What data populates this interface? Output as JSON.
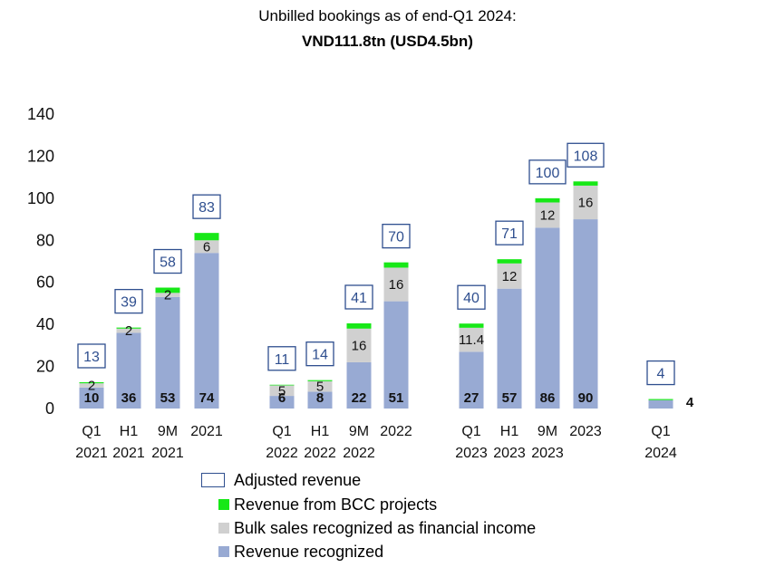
{
  "chart_data": {
    "type": "bar",
    "stacked": true,
    "title": "Unbilled bookings as of end-Q1 2024:",
    "subtitle": "VND111.8tn (USD4.5bn)",
    "ylim": [
      0,
      140
    ],
    "yticks": [
      "0",
      "20",
      "40",
      "60",
      "80",
      "100",
      "120",
      "140"
    ],
    "grid": false,
    "legend_position": "bottom",
    "categories": [
      {
        "line1": "Q1",
        "line2": "2021"
      },
      {
        "line1": "H1",
        "line2": "2021"
      },
      {
        "line1": "9M",
        "line2": "2021"
      },
      {
        "line1": "2021",
        "line2": ""
      },
      {
        "line1": "Q1",
        "line2": "2022"
      },
      {
        "line1": "H1",
        "line2": "2022"
      },
      {
        "line1": "9M",
        "line2": "2022"
      },
      {
        "line1": "2022",
        "line2": ""
      },
      {
        "line1": "Q1",
        "line2": "2023"
      },
      {
        "line1": "H1",
        "line2": "2023"
      },
      {
        "line1": "9M",
        "line2": "2023"
      },
      {
        "line1": "2023",
        "line2": ""
      },
      {
        "line1": "Q1",
        "line2": "2024"
      }
    ],
    "series": [
      {
        "name": "Revenue recognized",
        "color": "#98aad3",
        "values": [
          10,
          36,
          53,
          74,
          6,
          8,
          22,
          51,
          27,
          57,
          86,
          90,
          4
        ],
        "labels": [
          "10",
          "36",
          "53",
          "74",
          "6",
          "8",
          "22",
          "51",
          "27",
          "57",
          "86",
          "90",
          "4"
        ]
      },
      {
        "name": "Bulk sales recognized as financial income",
        "color": "#d0d0d0",
        "values": [
          2,
          2,
          2,
          6,
          5,
          5,
          16,
          16,
          11.4,
          12,
          12,
          16,
          0
        ],
        "labels": [
          "2",
          "2",
          "2",
          "6",
          "5",
          "5",
          "16",
          "16",
          "11.4",
          "12",
          "12",
          "16",
          ""
        ]
      },
      {
        "name": "Revenue from BCC projects",
        "color": "#17e817",
        "values": [
          0.5,
          0.5,
          2.5,
          3.5,
          0.3,
          0.5,
          2.5,
          2.5,
          2,
          2,
          2,
          2,
          0.5
        ],
        "labels": []
      }
    ],
    "adjusted_revenue": {
      "name": "Adjusted revenue",
      "color": "#2f4f8f",
      "values": [
        "13",
        "39",
        "58",
        "83",
        "11",
        "14",
        "41",
        "70",
        "40",
        "71",
        "100",
        "108",
        "4"
      ]
    }
  },
  "legend": {
    "items": [
      {
        "label": "Adjusted revenue",
        "kind": "box",
        "color": "#2f4f8f"
      },
      {
        "label": "Revenue from BCC projects",
        "kind": "fill",
        "color": "#17e817"
      },
      {
        "label": "Bulk sales recognized as financial income",
        "kind": "fill",
        "color": "#d0d0d0"
      },
      {
        "label": "Revenue recognized",
        "kind": "fill",
        "color": "#98aad3"
      }
    ]
  }
}
